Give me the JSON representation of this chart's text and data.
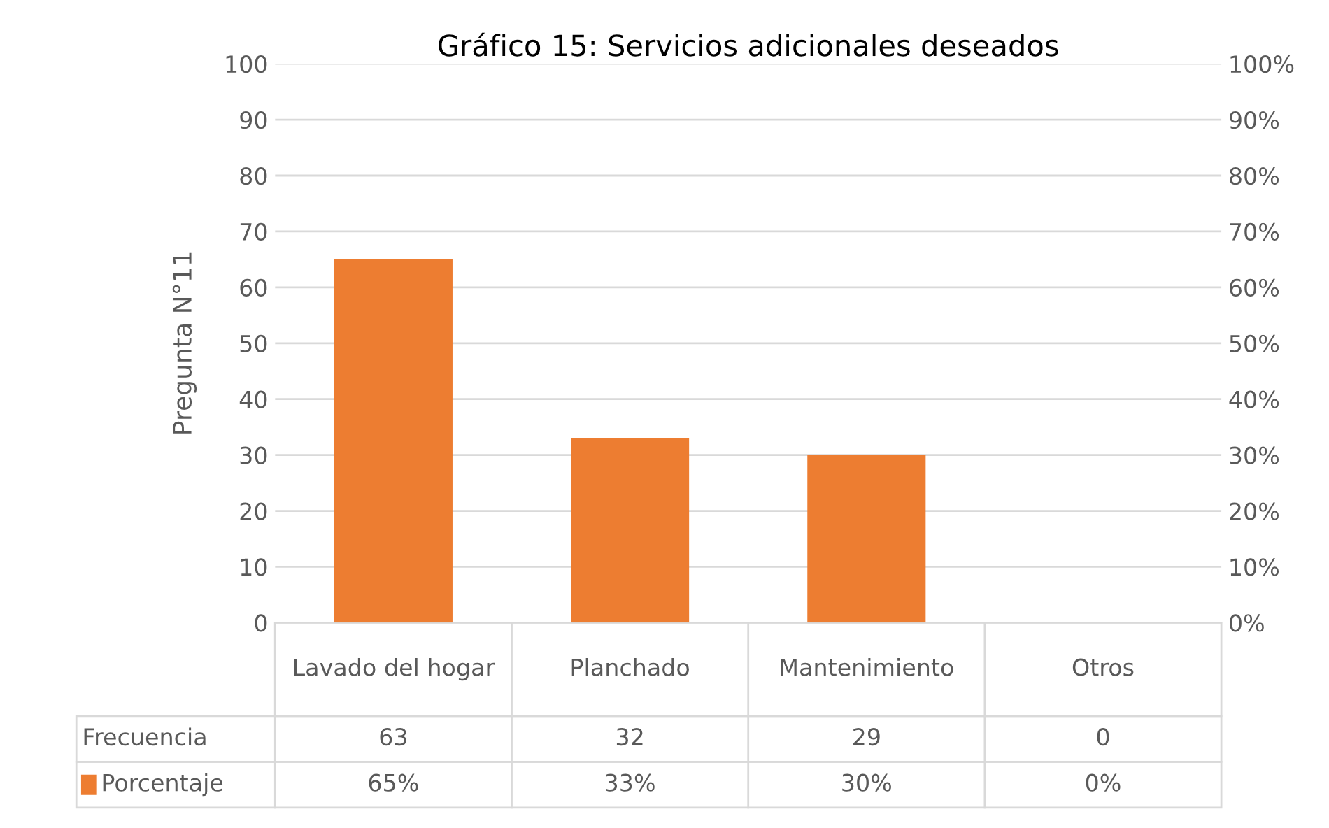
{
  "chart_data": {
    "type": "bar",
    "title": "Gráfico 15: Servicios adicionales deseados",
    "ylabel": "Pregunta N°11",
    "categories": [
      "Lavado del hogar",
      "Planchado",
      "Mantenimiento",
      "Otros"
    ],
    "series": [
      {
        "name": "Porcentaje",
        "color": "#ed7d31",
        "values": [
          65,
          33,
          30,
          0
        ],
        "value_labels": [
          "65%",
          "33%",
          "30%",
          "0%"
        ]
      }
    ],
    "ylim": [
      0,
      100
    ],
    "yticks": [
      0,
      10,
      20,
      30,
      40,
      50,
      60,
      70,
      80,
      90,
      100
    ],
    "y2lim": [
      0,
      100
    ],
    "y2ticks": [
      {
        "value": 0,
        "label": "0%"
      },
      {
        "value": 10,
        "label": "10%"
      },
      {
        "value": 20,
        "label": "20%"
      },
      {
        "value": 30,
        "label": "30%"
      },
      {
        "value": 40,
        "label": "40%"
      },
      {
        "value": 50,
        "label": "50%"
      },
      {
        "value": 60,
        "label": "60%"
      },
      {
        "value": 70,
        "label": "70%"
      },
      {
        "value": 80,
        "label": "80%"
      },
      {
        "value": 90,
        "label": "90%"
      },
      {
        "value": 100,
        "label": "100%"
      }
    ],
    "annotations": [
      "Frecuencia",
      "63",
      "32",
      "29",
      "0"
    ],
    "grid": "y",
    "data_labels": true
  }
}
